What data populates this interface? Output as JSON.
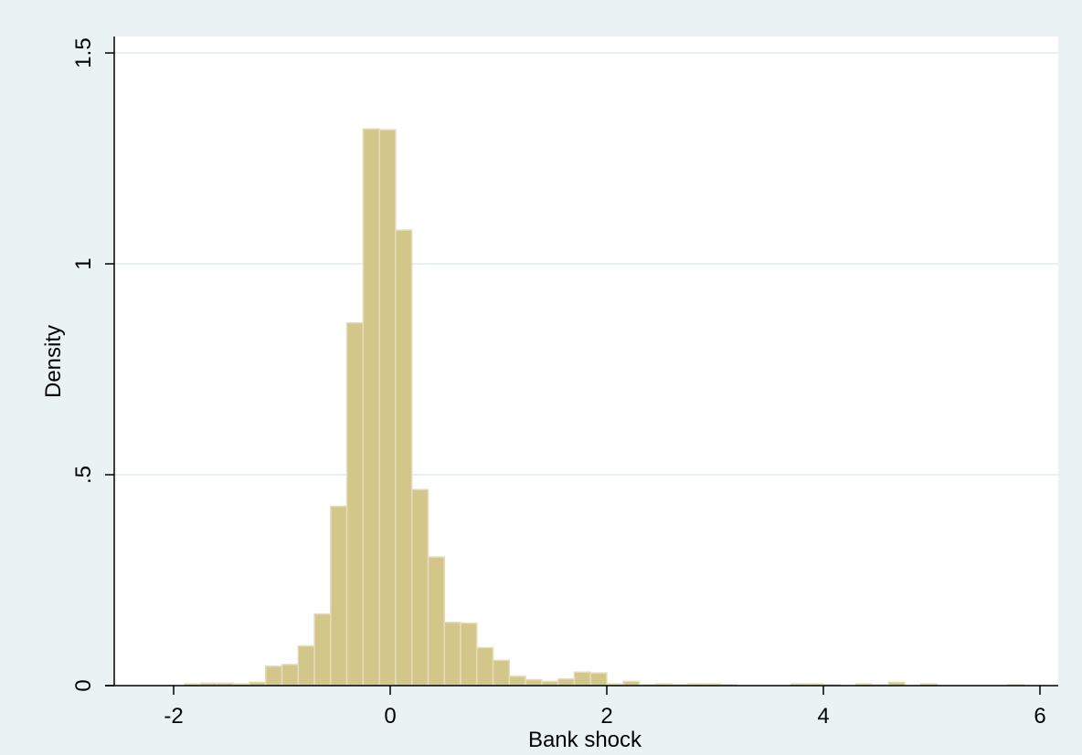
{
  "chart_data": {
    "type": "bar",
    "subtype": "histogram",
    "title": "",
    "xlabel": "Bank shock",
    "ylabel": "Density",
    "xlim": [
      -2.5,
      6.15
    ],
    "ylim": [
      0,
      1.52
    ],
    "xticks": [
      -2,
      0,
      2,
      4,
      6
    ],
    "xtick_labels": [
      "-2",
      "0",
      "2",
      "4",
      "6"
    ],
    "yticks": [
      0,
      0.5,
      1,
      1.5
    ],
    "ytick_labels": [
      "0",
      ".5",
      "1",
      "1.5"
    ],
    "bin_width": 0.15,
    "bins": [
      {
        "x0": -1.9,
        "x1": -1.75,
        "density": 0.004
      },
      {
        "x0": -1.75,
        "x1": -1.6,
        "density": 0.006
      },
      {
        "x0": -1.6,
        "x1": -1.45,
        "density": 0.006
      },
      {
        "x0": -1.45,
        "x1": -1.3,
        "density": 0.004
      },
      {
        "x0": -1.3,
        "x1": -1.15,
        "density": 0.008
      },
      {
        "x0": -1.15,
        "x1": -1.0,
        "density": 0.046
      },
      {
        "x0": -1.0,
        "x1": -0.85,
        "density": 0.05
      },
      {
        "x0": -0.85,
        "x1": -0.7,
        "density": 0.094
      },
      {
        "x0": -0.7,
        "x1": -0.55,
        "density": 0.17
      },
      {
        "x0": -0.55,
        "x1": -0.4,
        "density": 0.425
      },
      {
        "x0": -0.4,
        "x1": -0.25,
        "density": 0.86
      },
      {
        "x0": -0.25,
        "x1": -0.1,
        "density": 1.32
      },
      {
        "x0": -0.1,
        "x1": 0.05,
        "density": 1.318
      },
      {
        "x0": 0.05,
        "x1": 0.2,
        "density": 1.08
      },
      {
        "x0": 0.2,
        "x1": 0.35,
        "density": 0.465
      },
      {
        "x0": 0.35,
        "x1": 0.5,
        "density": 0.305
      },
      {
        "x0": 0.5,
        "x1": 0.65,
        "density": 0.15
      },
      {
        "x0": 0.65,
        "x1": 0.8,
        "density": 0.148
      },
      {
        "x0": 0.8,
        "x1": 0.95,
        "density": 0.09
      },
      {
        "x0": 0.95,
        "x1": 1.1,
        "density": 0.06
      },
      {
        "x0": 1.1,
        "x1": 1.25,
        "density": 0.022
      },
      {
        "x0": 1.25,
        "x1": 1.4,
        "density": 0.014
      },
      {
        "x0": 1.4,
        "x1": 1.55,
        "density": 0.01
      },
      {
        "x0": 1.55,
        "x1": 1.7,
        "density": 0.016
      },
      {
        "x0": 1.7,
        "x1": 1.85,
        "density": 0.032
      },
      {
        "x0": 1.85,
        "x1": 2.0,
        "density": 0.03
      },
      {
        "x0": 2.0,
        "x1": 2.15,
        "density": 0.004
      },
      {
        "x0": 2.15,
        "x1": 2.3,
        "density": 0.01
      },
      {
        "x0": 2.3,
        "x1": 2.45,
        "density": 0.002
      },
      {
        "x0": 2.45,
        "x1": 2.6,
        "density": 0.004
      },
      {
        "x0": 2.6,
        "x1": 2.75,
        "density": 0.002
      },
      {
        "x0": 2.75,
        "x1": 2.9,
        "density": 0.004
      },
      {
        "x0": 2.9,
        "x1": 3.05,
        "density": 0.004
      },
      {
        "x0": 3.05,
        "x1": 3.2,
        "density": 0.002
      },
      {
        "x0": 3.7,
        "x1": 3.85,
        "density": 0.004
      },
      {
        "x0": 3.85,
        "x1": 4.0,
        "density": 0.004
      },
      {
        "x0": 4.0,
        "x1": 4.15,
        "density": 0.002
      },
      {
        "x0": 4.3,
        "x1": 4.45,
        "density": 0.004
      },
      {
        "x0": 4.45,
        "x1": 4.6,
        "density": 0.002
      },
      {
        "x0": 4.6,
        "x1": 4.75,
        "density": 0.008
      },
      {
        "x0": 4.9,
        "x1": 5.05,
        "density": 0.004
      },
      {
        "x0": 5.7,
        "x1": 5.85,
        "density": 0.002
      }
    ],
    "grid": true,
    "legend": "none"
  },
  "colors": {
    "background": "#eaf2f3",
    "plot_background": "#ffffff",
    "bar_fill": "#d2c68b",
    "bar_edge": "#e6ddb8",
    "gridline": "#e8eff0",
    "axis": "#000000"
  }
}
